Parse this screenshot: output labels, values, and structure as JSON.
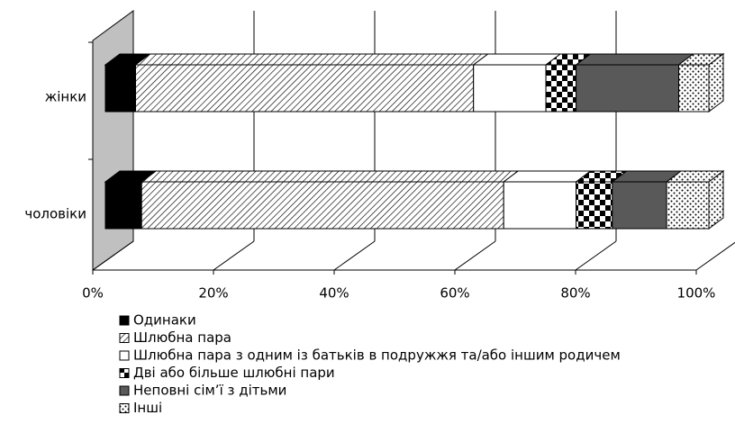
{
  "chart_data": {
    "type": "bar3d_stacked_horizontal",
    "categories": [
      "жінки",
      "чоловіки"
    ],
    "series": [
      {
        "name": "Одинаки",
        "color": "black",
        "values": [
          5,
          6
        ]
      },
      {
        "name": "Шлюбна пара",
        "color": "hatch",
        "values": [
          56,
          60
        ]
      },
      {
        "name": "Шлюбна пара з одним із батьків в подружжя та/або іншим родичем",
        "color": "white",
        "values": [
          12,
          12
        ]
      },
      {
        "name": "Дві або більше шлюбні пари",
        "color": "checker",
        "values": [
          5,
          6
        ]
      },
      {
        "name": "Неповні сім’ї з дітьми",
        "color": "#595959",
        "values": [
          17,
          9
        ]
      },
      {
        "name": "Інші",
        "color": "dots",
        "values": [
          5,
          7
        ]
      }
    ],
    "xlim": [
      0,
      100
    ],
    "xticks": [
      {
        "value": 0,
        "label": "0%"
      },
      {
        "value": 20,
        "label": "20%"
      },
      {
        "value": 40,
        "label": "40%"
      },
      {
        "value": 60,
        "label": "60%"
      },
      {
        "value": 80,
        "label": "80%"
      },
      {
        "value": 100,
        "label": "100%"
      }
    ],
    "grid": true
  }
}
